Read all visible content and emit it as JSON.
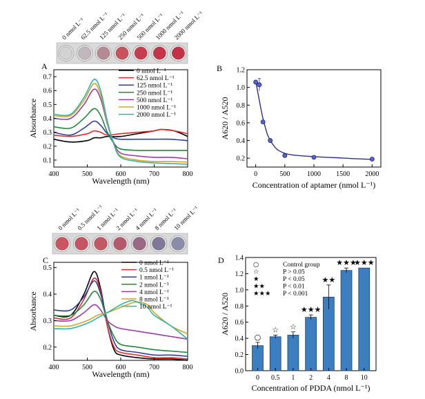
{
  "chart_data": [
    {
      "panel": "A",
      "type": "line",
      "xlabel": "Wavelength (nm)",
      "ylabel": "Absorbance",
      "xlim": [
        400,
        800
      ],
      "ylim": [
        0.05,
        0.75
      ],
      "xticks": [
        400,
        500,
        600,
        700,
        800
      ],
      "yticks": [
        0.1,
        0.2,
        0.3,
        0.4,
        0.5,
        0.6,
        0.7
      ],
      "legend_position": "top-right",
      "vial_labels": [
        "0 nmol L⁻¹",
        "62.5 nmol L⁻¹",
        "125 nmol L⁻¹",
        "250 nmol L⁻¹",
        "500 nmol L⁻¹",
        "1000 nmol L⁻¹",
        "2000 nmol L⁻¹"
      ],
      "series": [
        {
          "name": "0 nmol L⁻¹",
          "color": "#000000",
          "x": [
            400,
            450,
            500,
            520,
            540,
            560,
            600,
            650,
            700,
            720,
            760,
            800
          ],
          "y": [
            0.25,
            0.23,
            0.24,
            0.26,
            0.26,
            0.27,
            0.27,
            0.29,
            0.31,
            0.32,
            0.31,
            0.27
          ]
        },
        {
          "name": "62.5 nmol L⁻¹",
          "color": "#e8272a",
          "x": [
            400,
            450,
            500,
            520,
            540,
            560,
            600,
            650,
            700,
            720,
            760,
            800
          ],
          "y": [
            0.28,
            0.27,
            0.29,
            0.31,
            0.3,
            0.28,
            0.29,
            0.3,
            0.31,
            0.32,
            0.31,
            0.29
          ]
        },
        {
          "name": "125 nmol L⁻¹",
          "color": "#2f3c9e",
          "x": [
            400,
            450,
            490,
            520,
            540,
            560,
            580,
            600,
            650,
            700,
            750,
            800
          ],
          "y": [
            0.3,
            0.28,
            0.33,
            0.38,
            0.35,
            0.29,
            0.26,
            0.25,
            0.25,
            0.25,
            0.25,
            0.24
          ]
        },
        {
          "name": "250 nmol L⁻¹",
          "color": "#1e8a3a",
          "x": [
            400,
            450,
            490,
            520,
            540,
            560,
            580,
            600,
            650,
            700,
            750,
            800
          ],
          "y": [
            0.34,
            0.33,
            0.4,
            0.47,
            0.42,
            0.3,
            0.22,
            0.18,
            0.17,
            0.17,
            0.17,
            0.17
          ]
        },
        {
          "name": "500 nmol L⁻¹",
          "color": "#9b3ca6",
          "x": [
            400,
            450,
            490,
            520,
            540,
            560,
            580,
            600,
            650,
            700,
            750,
            800
          ],
          "y": [
            0.4,
            0.4,
            0.5,
            0.61,
            0.54,
            0.36,
            0.22,
            0.15,
            0.13,
            0.12,
            0.12,
            0.11
          ]
        },
        {
          "name": "1000 nmol L⁻¹",
          "color": "#d4a42b",
          "x": [
            400,
            450,
            490,
            520,
            540,
            560,
            580,
            600,
            650,
            700,
            750,
            800
          ],
          "y": [
            0.42,
            0.42,
            0.53,
            0.65,
            0.57,
            0.37,
            0.21,
            0.13,
            0.1,
            0.09,
            0.09,
            0.085
          ]
        },
        {
          "name": "2000 nmol L⁻¹",
          "color": "#31b4a6",
          "x": [
            400,
            450,
            490,
            520,
            540,
            560,
            580,
            600,
            650,
            700,
            750,
            800
          ],
          "y": [
            0.43,
            0.43,
            0.55,
            0.68,
            0.6,
            0.38,
            0.21,
            0.12,
            0.09,
            0.08,
            0.075,
            0.07
          ]
        }
      ]
    },
    {
      "panel": "B",
      "type": "scatter",
      "xlabel": "Concentration of aptamer (nmol L⁻¹)",
      "ylabel": "A620 / A520",
      "xlim": [
        -150,
        2150
      ],
      "ylim": [
        0.1,
        1.2
      ],
      "xticks": [
        0,
        500,
        1000,
        1500,
        2000
      ],
      "yticks": [
        0.2,
        0.4,
        0.6,
        0.8,
        1.0,
        1.2
      ],
      "x": [
        0,
        62.5,
        125,
        250,
        500,
        1000,
        2000
      ],
      "y": [
        1.06,
        1.03,
        0.61,
        0.4,
        0.23,
        0.21,
        0.19
      ],
      "error": [
        0.01,
        0.07,
        0.01,
        0.02,
        0.02,
        0.01,
        0.01
      ],
      "fit_x": [
        0,
        40,
        80,
        120,
        160,
        200,
        250,
        300,
        350,
        400,
        500,
        600,
        700,
        800,
        1000,
        1200,
        1400,
        1600,
        1800,
        2000
      ],
      "fit_y": [
        1.07,
        0.93,
        0.79,
        0.66,
        0.56,
        0.47,
        0.4,
        0.35,
        0.31,
        0.285,
        0.255,
        0.24,
        0.232,
        0.226,
        0.218,
        0.211,
        0.205,
        0.198,
        0.192,
        0.186
      ]
    },
    {
      "panel": "C",
      "type": "line",
      "xlabel": "Wavelength (nm)",
      "ylabel": "Absorbance",
      "xlim": [
        400,
        800
      ],
      "ylim": [
        0.15,
        0.52
      ],
      "xticks": [
        400,
        500,
        600,
        700,
        800
      ],
      "yticks": [
        0.2,
        0.3,
        0.4,
        0.5
      ],
      "legend_position": "top-right",
      "vial_labels": [
        "0 nmol L⁻¹",
        "0.5 nmol L⁻¹",
        "1 nmol L⁻¹",
        "2 nmol L⁻¹",
        "4 nmol L⁻¹",
        "8 nmol L⁻¹",
        "10 nmol L⁻¹"
      ],
      "series": [
        {
          "name": "0 nmol L⁻¹",
          "color": "#000000",
          "x": [
            400,
            450,
            490,
            520,
            540,
            560,
            580,
            600,
            650,
            700,
            750,
            800
          ],
          "y": [
            0.32,
            0.32,
            0.4,
            0.485,
            0.42,
            0.28,
            0.19,
            0.17,
            0.16,
            0.155,
            0.155,
            0.15
          ]
        },
        {
          "name": "0.5 nmol L⁻¹",
          "color": "#e8272a",
          "x": [
            400,
            450,
            490,
            520,
            540,
            560,
            580,
            600,
            650,
            700,
            750,
            800
          ],
          "y": [
            0.31,
            0.31,
            0.38,
            0.46,
            0.41,
            0.28,
            0.2,
            0.18,
            0.17,
            0.16,
            0.16,
            0.155
          ]
        },
        {
          "name": "1 nmol L⁻¹",
          "color": "#2f3c9e",
          "x": [
            400,
            450,
            490,
            520,
            540,
            560,
            580,
            600,
            650,
            700,
            750,
            800
          ],
          "y": [
            0.34,
            0.34,
            0.39,
            0.45,
            0.4,
            0.3,
            0.22,
            0.19,
            0.18,
            0.17,
            0.17,
            0.165
          ]
        },
        {
          "name": "2 nmol L⁻¹",
          "color": "#1e8a3a",
          "x": [
            400,
            450,
            490,
            520,
            540,
            560,
            580,
            600,
            650,
            700,
            750,
            800
          ],
          "y": [
            0.32,
            0.32,
            0.36,
            0.41,
            0.38,
            0.3,
            0.24,
            0.21,
            0.2,
            0.19,
            0.185,
            0.18
          ]
        },
        {
          "name": "4 nmol L⁻¹",
          "color": "#9b3ca6",
          "x": [
            400,
            450,
            490,
            520,
            540,
            560,
            580,
            600,
            650,
            700,
            750,
            800
          ],
          "y": [
            0.3,
            0.3,
            0.33,
            0.36,
            0.34,
            0.3,
            0.28,
            0.27,
            0.26,
            0.25,
            0.24,
            0.23
          ]
        },
        {
          "name": "8 nmol L⁻¹",
          "color": "#d4a42b",
          "x": [
            400,
            450,
            500,
            530,
            560,
            600,
            630,
            650,
            680,
            700,
            750,
            800
          ],
          "y": [
            0.28,
            0.28,
            0.3,
            0.32,
            0.33,
            0.35,
            0.365,
            0.37,
            0.36,
            0.33,
            0.28,
            0.25
          ]
        },
        {
          "name": "10 nmol L⁻¹",
          "color": "#31b4a6",
          "x": [
            400,
            450,
            500,
            530,
            560,
            600,
            630,
            650,
            680,
            700,
            750,
            800
          ],
          "y": [
            0.27,
            0.27,
            0.29,
            0.31,
            0.33,
            0.36,
            0.375,
            0.37,
            0.35,
            0.32,
            0.28,
            0.23
          ]
        }
      ]
    },
    {
      "panel": "D",
      "type": "bar",
      "xlabel": "Concentration of PDDA (nmol L⁻¹)",
      "ylabel": "A620 / A520",
      "ylim": [
        0.0,
        1.4
      ],
      "yticks": [
        0.0,
        0.2,
        0.4,
        0.6,
        0.8,
        1.0,
        1.2,
        1.4
      ],
      "categories": [
        "0",
        "0.5",
        "1",
        "2",
        "4",
        "8",
        "10"
      ],
      "values": [
        0.31,
        0.42,
        0.44,
        0.66,
        0.91,
        1.24,
        1.27
      ],
      "error": [
        0.04,
        0.02,
        0.04,
        0.03,
        0.15,
        0.03,
        0.0
      ],
      "significance": [
        "○",
        "☆",
        "☆",
        "★★★",
        "★★",
        "★★★",
        "★★★"
      ],
      "key": [
        {
          "symbol": "○",
          "text": "Control group"
        },
        {
          "symbol": "☆",
          "text": "P > 0.05"
        },
        {
          "symbol": "★",
          "text": "P < 0.05"
        },
        {
          "symbol": "★★",
          "text": "P < 0.01"
        },
        {
          "symbol": "★★★",
          "text": "P < 0.001"
        }
      ],
      "bar_color": "#3c7fc0"
    }
  ]
}
